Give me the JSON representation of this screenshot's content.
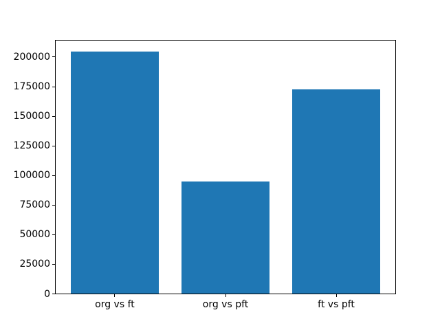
{
  "figure": {
    "background": "#ffffff",
    "spine_color": "#000000",
    "text_color": "#000000"
  },
  "chart_data": {
    "type": "bar",
    "title": "",
    "xlabel": "",
    "ylabel": "",
    "categories": [
      "org vs ft",
      "org vs pft",
      "ft vs pft"
    ],
    "values": [
      204600,
      95200,
      172900
    ],
    "bar_color": "#1f77b4",
    "bar_width_fraction": 0.8,
    "ylim": [
      0,
      214800
    ],
    "yticks": [
      0,
      25000,
      50000,
      75000,
      100000,
      125000,
      150000,
      175000,
      200000
    ],
    "ytick_labels": [
      "0",
      "25000",
      "50000",
      "75000",
      "100000",
      "125000",
      "150000",
      "175000",
      "200000"
    ],
    "grid": false,
    "legend": null
  }
}
